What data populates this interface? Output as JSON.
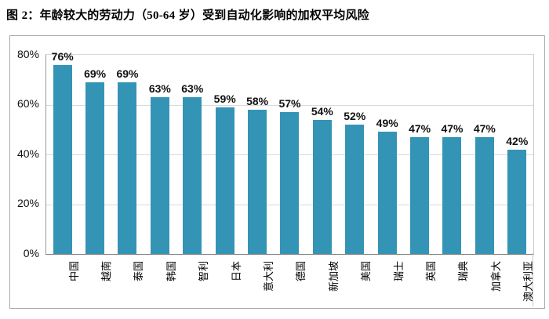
{
  "figure": {
    "title_parts": [
      {
        "text": "图 ",
        "style": "cjk"
      },
      {
        "text": "2",
        "style": "num"
      },
      {
        "text": "：年龄较大的劳动力（",
        "style": "cjk"
      },
      {
        "text": "50-64",
        "style": "num"
      },
      {
        "text": " 岁）受到自动化影响的加权平均风险",
        "style": "cjk"
      }
    ],
    "title_full": "图 2：年龄较大的劳动力（50-64 岁）受到自动化影响的加权平均风险"
  },
  "chart_data": {
    "type": "bar",
    "title": "年龄较大的劳动力（50-64 岁）受到自动化影响的加权平均风险",
    "categories": [
      "中国",
      "越南",
      "泰国",
      "韩国",
      "智利",
      "日本",
      "意大利",
      "德国",
      "新加坡",
      "美国",
      "瑞士",
      "英国",
      "瑞典",
      "加拿大",
      "澳大利亚"
    ],
    "values": [
      76,
      69,
      69,
      63,
      63,
      59,
      58,
      57,
      54,
      52,
      49,
      47,
      47,
      47,
      42
    ],
    "data_labels": [
      "76%",
      "69%",
      "69%",
      "63%",
      "63%",
      "59%",
      "58%",
      "57%",
      "54%",
      "52%",
      "49%",
      "47%",
      "47%",
      "47%",
      "42%"
    ],
    "yticks": [
      {
        "value": 80,
        "label": "80%"
      },
      {
        "value": 60,
        "label": "60%"
      },
      {
        "value": 40,
        "label": "40%"
      },
      {
        "value": 20,
        "label": "20%"
      },
      {
        "value": 0,
        "label": "0%"
      }
    ],
    "ylim": [
      0,
      80
    ],
    "xlabel": "",
    "ylabel": "",
    "grid": true,
    "legend": false,
    "colors": {
      "bar": "#3494b6",
      "gridline": "#d9d9d9",
      "axis_line": "#7f7f7f",
      "frame_border": "#ababab",
      "text": "#000000"
    }
  }
}
